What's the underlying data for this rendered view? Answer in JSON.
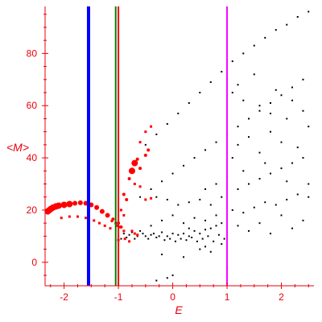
{
  "chart_data": {
    "type": "scatter",
    "title": "",
    "xlabel": "E",
    "ylabel": "<M>",
    "xlim": [
      -2.35,
      2.6
    ],
    "ylim": [
      -9,
      98
    ],
    "x_ticks": [
      -2,
      -1,
      0,
      1,
      2
    ],
    "y_ticks": [
      0,
      20,
      40,
      60,
      80
    ],
    "grid": false,
    "legend": "none",
    "colors": {
      "axis": "#e8000b",
      "ticks": "#e8000b",
      "points_small": "#000000",
      "points_red": "#ff0000",
      "line_blue": "#0000ff",
      "line_green": "#008000",
      "line_red": "#ff0000",
      "line_magenta": "#ff00ff"
    },
    "vertical_lines": [
      {
        "x": -1.55,
        "color": "#0000ff",
        "width": 4
      },
      {
        "x": -1.05,
        "color": "#008000",
        "width": 2
      },
      {
        "x": -1.0,
        "color": "#ff0000",
        "width": 2
      },
      {
        "x": 1.0,
        "color": "#ff00ff",
        "width": 2
      }
    ],
    "series": [
      {
        "type": "scatter",
        "color": "#ff0000",
        "points": [
          [
            -2.3,
            19.5,
            4
          ],
          [
            -2.27,
            20.0,
            4
          ],
          [
            -2.24,
            20.5,
            4
          ],
          [
            -2.2,
            21.0,
            4
          ],
          [
            -2.15,
            21.4,
            4
          ],
          [
            -2.1,
            21.7,
            4
          ],
          [
            -2.0,
            22.0,
            4
          ],
          [
            -1.9,
            22.3,
            4
          ],
          [
            -1.8,
            22.6,
            3
          ],
          [
            -1.7,
            22.8,
            3
          ],
          [
            -1.6,
            22.6,
            3
          ],
          [
            -1.5,
            22.0,
            3
          ],
          [
            -1.4,
            21.0,
            3
          ],
          [
            -1.3,
            19.5,
            3
          ],
          [
            -1.2,
            18.0,
            3
          ],
          [
            -1.1,
            16.5,
            2
          ],
          [
            -1.0,
            15.0,
            2
          ],
          [
            -0.95,
            13.5,
            2
          ],
          [
            -1.12,
            15.8,
            1.5
          ],
          [
            -1.05,
            15.0,
            1.5
          ],
          [
            -1.02,
            14.0,
            1.5
          ],
          [
            -0.98,
            13.5,
            1.5
          ],
          [
            -0.9,
            12.0,
            1.5
          ],
          [
            -2.05,
            17.0,
            1.5
          ],
          [
            -1.9,
            17.5,
            1.5
          ],
          [
            -1.75,
            17.5,
            1.5
          ],
          [
            -1.6,
            17.0,
            1.5
          ],
          [
            -1.45,
            16.0,
            1.5
          ],
          [
            -1.35,
            15.0,
            1.5
          ],
          [
            -1.25,
            14.0,
            1.5
          ],
          [
            -1.15,
            13.0,
            1.5
          ],
          [
            -1.0,
            8.5,
            1.5
          ],
          [
            -0.88,
            9.0,
            1.5
          ],
          [
            -0.8,
            8.0,
            1.5
          ],
          [
            -0.75,
            12.0,
            1.5
          ],
          [
            -0.7,
            11.0,
            1.5
          ],
          [
            -0.65,
            10.5,
            1.5
          ],
          [
            -0.8,
            32.0,
            2
          ],
          [
            -0.75,
            35.0,
            4
          ],
          [
            -0.7,
            38.0,
            4
          ],
          [
            -0.65,
            39.5,
            2
          ],
          [
            -0.6,
            36.0,
            2
          ],
          [
            -0.5,
            41.0,
            2
          ],
          [
            -0.45,
            43.0,
            2
          ],
          [
            -0.6,
            46.0,
            1.5
          ],
          [
            -0.5,
            50.0,
            1.5
          ],
          [
            -0.4,
            52.0,
            1.5
          ],
          [
            -0.9,
            26.0,
            2
          ],
          [
            -0.85,
            24.0,
            2
          ],
          [
            -0.95,
            20.0,
            1.5
          ],
          [
            -0.9,
            18.0,
            1.5
          ],
          [
            -0.7,
            30.0,
            1.5
          ],
          [
            -0.6,
            29.0,
            1.5
          ],
          [
            -0.5,
            24.0,
            1.5
          ],
          [
            -0.4,
            24.5,
            1.5
          ]
        ]
      },
      {
        "type": "scatter",
        "color": "#000000",
        "points": [
          [
            -1.0,
            10.0
          ],
          [
            -0.95,
            9.0
          ],
          [
            -0.9,
            11.0
          ],
          [
            -0.85,
            9.5
          ],
          [
            -0.8,
            10.5
          ],
          [
            -0.75,
            11.5
          ],
          [
            -0.7,
            9.0
          ],
          [
            -0.65,
            10.0
          ],
          [
            -0.6,
            12.0
          ],
          [
            -0.55,
            11.0
          ],
          [
            -0.5,
            10.0
          ],
          [
            -0.45,
            9.0
          ],
          [
            -0.4,
            10.5
          ],
          [
            -0.35,
            11.0
          ],
          [
            -0.3,
            9.5
          ],
          [
            -0.25,
            10.0
          ],
          [
            -0.2,
            11.5
          ],
          [
            -0.15,
            8.5
          ],
          [
            -0.1,
            10.0
          ],
          [
            -0.05,
            9.0
          ],
          [
            0.0,
            11.0
          ],
          [
            0.05,
            8.0
          ],
          [
            0.1,
            10.5
          ],
          [
            0.15,
            9.0
          ],
          [
            0.2,
            11.0
          ],
          [
            0.25,
            8.5
          ],
          [
            0.3,
            10.0
          ],
          [
            0.35,
            9.5
          ],
          [
            0.4,
            12.0
          ],
          [
            0.45,
            8.0
          ],
          [
            0.5,
            11.0
          ],
          [
            0.55,
            9.0
          ],
          [
            0.6,
            12.5
          ],
          [
            0.65,
            10.0
          ],
          [
            0.7,
            13.0
          ],
          [
            0.75,
            8.0
          ],
          [
            0.8,
            14.0
          ],
          [
            0.85,
            10.5
          ],
          [
            0.9,
            15.0
          ],
          [
            0.95,
            9.0
          ],
          [
            -0.6,
            25.0
          ],
          [
            -0.4,
            28.0
          ],
          [
            -0.2,
            31.0
          ],
          [
            0.0,
            34.0
          ],
          [
            0.2,
            37.0
          ],
          [
            0.4,
            40.0
          ],
          [
            0.6,
            43.0
          ],
          [
            0.8,
            46.0
          ],
          [
            1.0,
            49.0
          ],
          [
            1.2,
            52.0
          ],
          [
            1.4,
            55.0
          ],
          [
            1.6,
            58.0
          ],
          [
            1.8,
            61.0
          ],
          [
            2.0,
            64.0
          ],
          [
            2.2,
            67.0
          ],
          [
            2.4,
            70.0
          ],
          [
            -0.5,
            45.0
          ],
          [
            -0.3,
            49.0
          ],
          [
            -0.1,
            53.0
          ],
          [
            0.1,
            57.0
          ],
          [
            0.3,
            61.0
          ],
          [
            0.5,
            65.0
          ],
          [
            0.7,
            69.0
          ],
          [
            0.9,
            73.0
          ],
          [
            1.1,
            77.0
          ],
          [
            1.3,
            80.0
          ],
          [
            1.5,
            83.0
          ],
          [
            1.7,
            86.0
          ],
          [
            1.9,
            89.0
          ],
          [
            2.1,
            91.0
          ],
          [
            2.3,
            94.0
          ],
          [
            2.5,
            96.0
          ],
          [
            -0.3,
            25.0
          ],
          [
            -0.1,
            24.0
          ],
          [
            0.1,
            22.0
          ],
          [
            0.3,
            23.0
          ],
          [
            0.5,
            24.0
          ],
          [
            0.7,
            22.0
          ],
          [
            0.9,
            25.0
          ],
          [
            1.2,
            28.0
          ],
          [
            1.4,
            30.0
          ],
          [
            1.6,
            32.0
          ],
          [
            1.8,
            34.0
          ],
          [
            2.0,
            36.0
          ],
          [
            2.2,
            38.0
          ],
          [
            2.4,
            40.0
          ],
          [
            0.2,
            15.0
          ],
          [
            0.4,
            17.0
          ],
          [
            0.6,
            16.0
          ],
          [
            0.8,
            18.0
          ],
          [
            1.1,
            20.0
          ],
          [
            1.3,
            19.0
          ],
          [
            1.5,
            21.0
          ],
          [
            1.7,
            23.0
          ],
          [
            1.9,
            22.0
          ],
          [
            2.1,
            24.0
          ],
          [
            2.3,
            26.0
          ],
          [
            2.5,
            25.0
          ],
          [
            1.0,
            70.0
          ],
          [
            1.1,
            65.0
          ],
          [
            1.2,
            68.0
          ],
          [
            1.3,
            62.0
          ],
          [
            1.5,
            72.0
          ],
          [
            1.6,
            60.0
          ],
          [
            1.8,
            57.0
          ],
          [
            1.9,
            66.0
          ],
          [
            2.1,
            55.0
          ],
          [
            2.2,
            62.0
          ],
          [
            2.4,
            58.0
          ],
          [
            2.5,
            52.0
          ],
          [
            1.1,
            40.0
          ],
          [
            1.2,
            45.0
          ],
          [
            1.3,
            35.0
          ],
          [
            1.4,
            48.0
          ],
          [
            1.6,
            42.0
          ],
          [
            1.7,
            38.0
          ],
          [
            1.8,
            50.0
          ],
          [
            2.0,
            46.0
          ],
          [
            2.1,
            31.0
          ],
          [
            2.3,
            44.0
          ],
          [
            2.5,
            30.0
          ],
          [
            0.6,
            28.0
          ],
          [
            0.8,
            30.0
          ],
          [
            1.0,
            33.0
          ],
          [
            1.2,
            14.0
          ],
          [
            1.4,
            12.0
          ],
          [
            1.6,
            15.0
          ],
          [
            1.8,
            11.0
          ],
          [
            2.0,
            18.0
          ],
          [
            2.2,
            13.0
          ],
          [
            2.4,
            16.0
          ],
          [
            0.0,
            18.0
          ],
          [
            -0.2,
            16.0
          ],
          [
            -0.4,
            14.0
          ],
          [
            0.3,
            13.0
          ],
          [
            0.6,
            6.0
          ],
          [
            -0.3,
            -7.0
          ],
          [
            -0.1,
            -6.0
          ],
          [
            0.0,
            -5.0
          ],
          [
            1.0,
            -2.0
          ],
          [
            -0.2,
            3.0
          ],
          [
            0.2,
            2.0
          ],
          [
            0.5,
            5.0
          ],
          [
            0.7,
            4.0
          ],
          [
            0.9,
            7.0
          ]
        ]
      }
    ]
  }
}
